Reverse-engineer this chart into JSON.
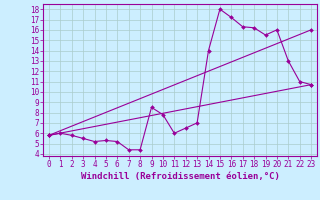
{
  "xlabel": "Windchill (Refroidissement éolien,°C)",
  "bg_color": "#cceeff",
  "line_color": "#990099",
  "grid_color": "#aacccc",
  "xlim": [
    -0.5,
    23.5
  ],
  "ylim": [
    3.8,
    18.5
  ],
  "xticks": [
    0,
    1,
    2,
    3,
    4,
    5,
    6,
    7,
    8,
    9,
    10,
    11,
    12,
    13,
    14,
    15,
    16,
    17,
    18,
    19,
    20,
    21,
    22,
    23
  ],
  "yticks": [
    4,
    5,
    6,
    7,
    8,
    9,
    10,
    11,
    12,
    13,
    14,
    15,
    16,
    17,
    18
  ],
  "line1_x": [
    0,
    1,
    2,
    3,
    4,
    5,
    6,
    7,
    8,
    9,
    10,
    11,
    12,
    13,
    14,
    15,
    16,
    17,
    18,
    19,
    20,
    21,
    22,
    23
  ],
  "line1_y": [
    5.8,
    6.0,
    5.8,
    5.5,
    5.2,
    5.3,
    5.2,
    4.4,
    4.4,
    8.5,
    7.8,
    6.0,
    6.5,
    7.0,
    14.0,
    18.0,
    17.2,
    16.3,
    16.2,
    15.5,
    16.0,
    13.0,
    11.0,
    10.7
  ],
  "line2_x": [
    0,
    23
  ],
  "line2_y": [
    5.8,
    10.7
  ],
  "line3_x": [
    0,
    23
  ],
  "line3_y": [
    5.8,
    16.0
  ],
  "tick_fontsize": 5.5,
  "label_fontsize": 6.5
}
